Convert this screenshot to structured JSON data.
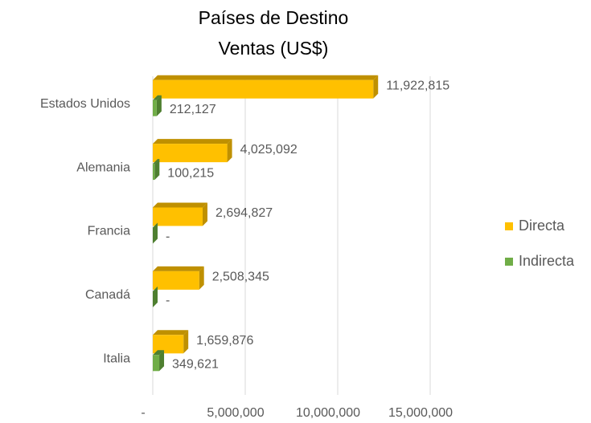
{
  "chart_data": {
    "type": "bar",
    "orientation": "horizontal",
    "title": "Países de Destino",
    "subtitle": "Ventas (US$)",
    "categories": [
      "Estados Unidos",
      "Alemania",
      "Francia",
      "Canadá",
      "Italia"
    ],
    "series": [
      {
        "name": "Directa",
        "color": "#FFC000",
        "values": [
          11922815,
          4025092,
          2694827,
          2508345,
          1659876
        ],
        "value_labels": [
          "11,922,815",
          "4,025,092",
          "2,694,827",
          "2,508,345",
          "1,659,876"
        ]
      },
      {
        "name": "Indirecta",
        "color": "#70AD47",
        "values": [
          212127,
          100215,
          0,
          0,
          349621
        ],
        "value_labels": [
          "212,127",
          "100,215",
          "-",
          "-",
          "349,621"
        ]
      }
    ],
    "xlim": [
      0,
      15000000
    ],
    "xticks": [
      {
        "value": 0,
        "label": "-"
      },
      {
        "value": 5000000,
        "label": "5,000,000"
      },
      {
        "value": 10000000,
        "label": "10,000,000"
      },
      {
        "value": 15000000,
        "label": "15,000,000"
      }
    ],
    "grid": true,
    "legend": "right"
  }
}
